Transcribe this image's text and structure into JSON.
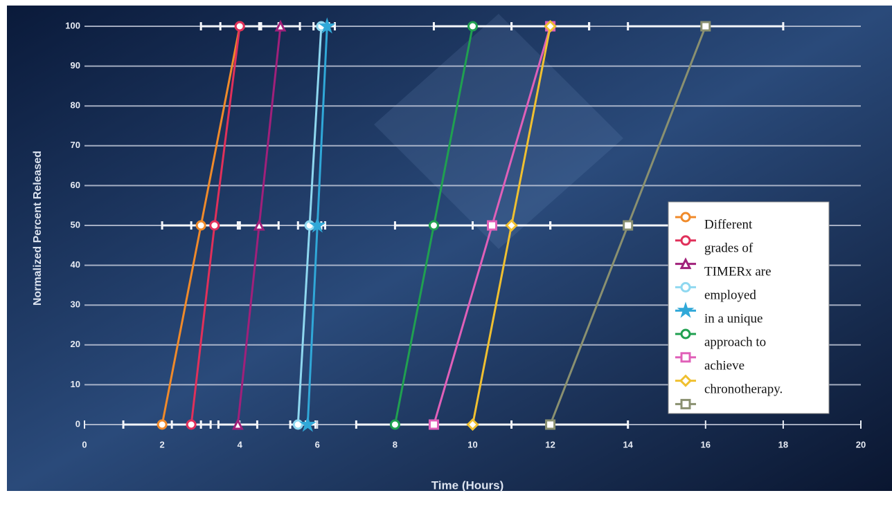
{
  "chart_data": {
    "type": "line",
    "x_label": "Time (Hours)",
    "y_label": "Normalized Percent Released",
    "xlim": [
      0,
      20
    ],
    "xticks": [
      0,
      2,
      4,
      6,
      8,
      10,
      12,
      14,
      16,
      18,
      20
    ],
    "ylim": [
      0,
      100
    ],
    "yticks": [
      0,
      10,
      20,
      30,
      40,
      50,
      60,
      70,
      80,
      90,
      100
    ],
    "grid": true,
    "legend_text": [
      "Different",
      "grades of",
      "TIMERx are",
      "employed",
      "in a unique",
      "approach to",
      "achieve",
      "chronotherapy."
    ],
    "series": [
      {
        "color": "#f08a2a",
        "marker": "circle",
        "x": [
          2,
          3,
          4
        ],
        "values": [
          0,
          50,
          100
        ],
        "xerr": [
          1,
          1,
          1
        ]
      },
      {
        "color": "#e0305a",
        "marker": "circle",
        "x": [
          2.75,
          3.35,
          4
        ],
        "values": [
          0,
          50,
          100
        ],
        "xerr": [
          0.5,
          0.6,
          0.5
        ]
      },
      {
        "color": "#a0207a",
        "marker": "triangle",
        "x": [
          3.95,
          4.5,
          5.05
        ],
        "values": [
          0,
          50,
          100
        ],
        "xerr": [
          0.5,
          0.5,
          0.5
        ]
      },
      {
        "color": "#8fd8f0",
        "marker": "circle",
        "x": [
          5.5,
          5.8,
          6.1
        ],
        "values": [
          0,
          50,
          100
        ],
        "xerr": [
          0.2,
          0.3,
          0.2
        ]
      },
      {
        "color": "#30a8d8",
        "marker": "star",
        "x": [
          5.75,
          6,
          6.25
        ],
        "values": [
          0,
          50,
          100
        ],
        "xerr": [
          0.2,
          0.2,
          0.2
        ]
      },
      {
        "color": "#20a050",
        "marker": "circle",
        "x": [
          8,
          9,
          10
        ],
        "values": [
          0,
          50,
          100
        ],
        "xerr": [
          1,
          1,
          1
        ]
      },
      {
        "color": "#e060b8",
        "marker": "square",
        "x": [
          9,
          10.5,
          12
        ],
        "values": [
          0,
          50,
          100
        ],
        "xerr": [
          1,
          1.5,
          1
        ]
      },
      {
        "color": "#f0c030",
        "marker": "diamond",
        "x": [
          10,
          11,
          12
        ],
        "values": [
          0,
          50,
          100
        ],
        "xerr": [
          1,
          1,
          1
        ]
      },
      {
        "color": "#8a9070",
        "marker": "square",
        "x": [
          12,
          14,
          16
        ],
        "values": [
          0,
          50,
          100
        ],
        "xerr": [
          2,
          2,
          2
        ]
      }
    ]
  }
}
